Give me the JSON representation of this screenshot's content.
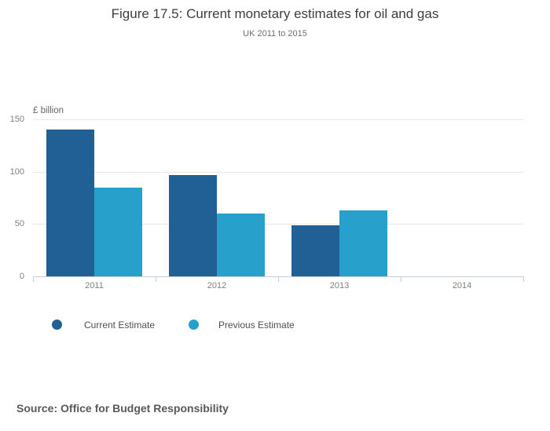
{
  "header": {
    "title": "Figure 17.5: Current monetary estimates for oil and gas",
    "subtitle": "UK 2011 to 2015"
  },
  "footer": {
    "source": "Source: Office for Budget Responsibility"
  },
  "chart_data": {
    "type": "bar",
    "categories": [
      "2011",
      "2012",
      "2013",
      "2014"
    ],
    "series": [
      {
        "name": "Current Estimate",
        "color": "#206095",
        "values": [
          140,
          97,
          49,
          null
        ]
      },
      {
        "name": "Previous Estimate",
        "color": "#27a0cc",
        "values": [
          85,
          60,
          63,
          null
        ]
      }
    ],
    "ylabel": "£ billion",
    "yticks": [
      0,
      50,
      100,
      150
    ],
    "ylim": [
      0,
      150
    ],
    "grid": "horizontal gridlines at 50, 100, 150",
    "legend_position": "below plot, bottom-left",
    "colors": {
      "gridline": "#e7e7e7",
      "axis_line": "#c2d1dd",
      "tick_label": "#7f7f7f"
    }
  }
}
